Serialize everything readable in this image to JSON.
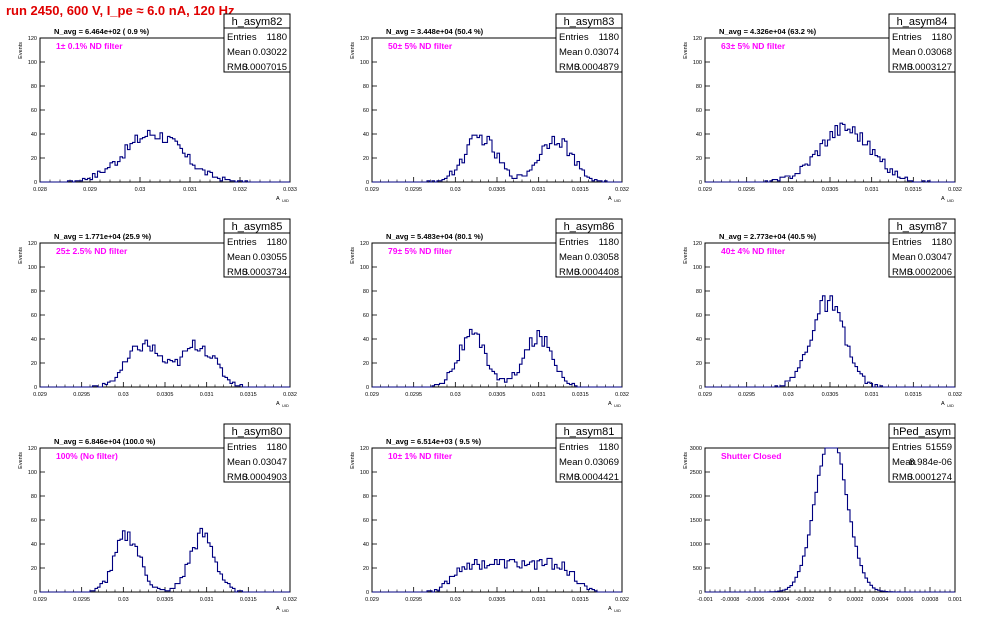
{
  "title": "run 2450,   600 V, I_pe ≈ 6.0 nA, 120 Hz",
  "chart_data": [
    {
      "type": "histogram",
      "name": "h_asym82",
      "nline": "N_avg = 6.464e+02 ( 0.9 %)",
      "filter": "1± 0.1% ND filter",
      "stats": [
        [
          "Entries",
          "1180"
        ],
        [
          "Mean",
          "0.03022"
        ],
        [
          "RMS",
          "0.0007015"
        ]
      ],
      "xlabel": "A_UID",
      "ylabel": "Events",
      "xlim": [
        0.0275,
        0.0335
      ],
      "ylim": [
        0,
        120
      ],
      "xticks": [
        "0.028",
        "0.029",
        "0.03",
        "0.031",
        "0.032",
        "0.033"
      ],
      "yticks": [
        "0",
        "20",
        "40",
        "60",
        "80",
        "100",
        "120"
      ],
      "shape": "gauss",
      "mu": 0.03022,
      "sigma": 0.0007015,
      "entries": 1180
    },
    {
      "type": "histogram",
      "name": "h_asym83",
      "nline": "N_avg = 3.448e+04 (50.4 %)",
      "filter": "50± 5% ND filter",
      "stats": [
        [
          "Entries",
          "1180"
        ],
        [
          "Mean",
          "0.03074"
        ],
        [
          "RMS",
          "0.0004879"
        ]
      ],
      "xlabel": "A_UID",
      "ylabel": "Events",
      "xlim": [
        0.029,
        0.032
      ],
      "ylim": [
        0,
        120
      ],
      "xticks": [
        "0.029",
        "0.0295",
        "0.03",
        "0.0305",
        "0.031",
        "0.0315",
        "0.032"
      ],
      "yticks": [
        "0",
        "20",
        "40",
        "60",
        "80",
        "100",
        "120"
      ],
      "shape": "double",
      "peaks": [
        0.0303,
        0.0312
      ],
      "sigma": 0.00019,
      "entries": 1180
    },
    {
      "type": "histogram",
      "name": "h_asym84",
      "nline": "N_avg = 4.326e+04 (63.2 %)",
      "filter": "63± 5% ND filter",
      "stats": [
        [
          "Entries",
          "1180"
        ],
        [
          "Mean",
          "0.03068"
        ],
        [
          "RMS",
          "0.0003127"
        ]
      ],
      "xlabel": "A_UID",
      "ylabel": "Events",
      "xlim": [
        0.029,
        0.032
      ],
      "ylim": [
        0,
        120
      ],
      "xticks": [
        "0.029",
        "0.0295",
        "0.03",
        "0.0305",
        "0.031",
        "0.0315",
        "0.032"
      ],
      "yticks": [
        "0",
        "20",
        "40",
        "60",
        "80",
        "100",
        "120"
      ],
      "shape": "gauss",
      "mu": 0.03068,
      "sigma": 0.0003127,
      "entries": 1180
    },
    {
      "type": "histogram",
      "name": "h_asym85",
      "nline": "N_avg = 1.771e+04 (25.9 %)",
      "filter": "25± 2.5% ND filter",
      "stats": [
        [
          "Entries",
          "1180"
        ],
        [
          "Mean",
          "0.03055"
        ],
        [
          "RMS",
          "0.0003734"
        ]
      ],
      "xlabel": "A_UID",
      "ylabel": "Events",
      "xlim": [
        0.029,
        0.032
      ],
      "ylim": [
        0,
        120
      ],
      "xticks": [
        "0.029",
        "0.0295",
        "0.03",
        "0.0305",
        "0.031",
        "0.0315",
        "0.032"
      ],
      "yticks": [
        "0",
        "20",
        "40",
        "60",
        "80",
        "100",
        "120"
      ],
      "shape": "double",
      "peaks": [
        0.03025,
        0.0309
      ],
      "sigma": 0.0002,
      "entries": 1180
    },
    {
      "type": "histogram",
      "name": "h_asym86",
      "nline": "N_avg = 5.483e+04 (80.1 %)",
      "filter": "79± 5% ND filter",
      "stats": [
        [
          "Entries",
          "1180"
        ],
        [
          "Mean",
          "0.03058"
        ],
        [
          "RMS",
          "0.0004408"
        ]
      ],
      "xlabel": "A_UID",
      "ylabel": "Events",
      "xlim": [
        0.029,
        0.032
      ],
      "ylim": [
        0,
        120
      ],
      "xticks": [
        "0.029",
        "0.0295",
        "0.03",
        "0.0305",
        "0.031",
        "0.0315",
        "0.032"
      ],
      "yticks": [
        "0",
        "20",
        "40",
        "60",
        "80",
        "100",
        "120"
      ],
      "shape": "double",
      "peaks": [
        0.0302,
        0.031
      ],
      "sigma": 0.00017,
      "entries": 1180
    },
    {
      "type": "histogram",
      "name": "h_asym87",
      "nline": "N_avg = 2.773e+04 (40.5 %)",
      "filter": "40± 4% ND filter",
      "stats": [
        [
          "Entries",
          "1180"
        ],
        [
          "Mean",
          "0.03047"
        ],
        [
          "RMS",
          "0.0002006"
        ]
      ],
      "xlabel": "A_UID",
      "ylabel": "Events",
      "xlim": [
        0.029,
        0.032
      ],
      "ylim": [
        0,
        120
      ],
      "xticks": [
        "0.029",
        "0.0295",
        "0.03",
        "0.0305",
        "0.031",
        "0.0315",
        "0.032"
      ],
      "yticks": [
        "0",
        "20",
        "40",
        "60",
        "80",
        "100",
        "120"
      ],
      "shape": "gauss",
      "mu": 0.03047,
      "sigma": 0.0002006,
      "entries": 1180
    },
    {
      "type": "histogram",
      "name": "h_asym80",
      "nline": "N_avg = 6.846e+04 (100.0 %)",
      "filter": "100% (No filter)",
      "stats": [
        [
          "Entries",
          "1180"
        ],
        [
          "Mean",
          "0.03047"
        ],
        [
          "RMS",
          "0.0004903"
        ]
      ],
      "xlabel": "A_UID",
      "ylabel": "Events",
      "xlim": [
        0.029,
        0.032
      ],
      "ylim": [
        0,
        120
      ],
      "xticks": [
        "0.029",
        "0.0295",
        "0.03",
        "0.0305",
        "0.031",
        "0.0315",
        "0.032"
      ],
      "yticks": [
        "0",
        "20",
        "40",
        "60",
        "80",
        "100",
        "120"
      ],
      "shape": "double",
      "peaks": [
        0.03005,
        0.03095
      ],
      "sigma": 0.00015,
      "entries": 1180
    },
    {
      "type": "histogram",
      "name": "h_asym81",
      "nline": "N_avg = 6.514e+03 ( 9.5 %)",
      "filter": "10± 1% ND filter",
      "stats": [
        [
          "Entries",
          "1180"
        ],
        [
          "Mean",
          "0.03069"
        ],
        [
          "RMS",
          "0.0004421"
        ]
      ],
      "xlabel": "A_UID",
      "ylabel": "Events",
      "xlim": [
        0.029,
        0.032
      ],
      "ylim": [
        0,
        120
      ],
      "xticks": [
        "0.029",
        "0.0295",
        "0.03",
        "0.0305",
        "0.031",
        "0.0315",
        "0.032"
      ],
      "yticks": [
        "0",
        "20",
        "40",
        "60",
        "80",
        "100",
        "120"
      ],
      "shape": "flat",
      "mu": 0.03069,
      "sigma": 0.0004421,
      "entries": 1180
    },
    {
      "type": "histogram",
      "name": "hPed_asym",
      "nline": "",
      "filter": "Shutter Closed",
      "stats": [
        [
          "Entries",
          "51559"
        ],
        [
          "Mean",
          "8.984e-06"
        ],
        [
          "RMS",
          "0.0001274"
        ]
      ],
      "xlabel": "",
      "ylabel": "Events",
      "xlim": [
        -0.001,
        0.001
      ],
      "ylim": [
        0,
        3000
      ],
      "xticks": [
        "-0.001",
        "-0.0008",
        "-0.0006",
        "-0.0004",
        "-0.0002",
        "0",
        "0.0002",
        "0.0004",
        "0.0006",
        "0.0008",
        "0.001"
      ],
      "yticks": [
        "0",
        "500",
        "1000",
        "1500",
        "2000",
        "2500",
        "3000"
      ],
      "shape": "gauss",
      "mu": 9e-06,
      "sigma": 0.0001274,
      "entries": 51559
    }
  ]
}
